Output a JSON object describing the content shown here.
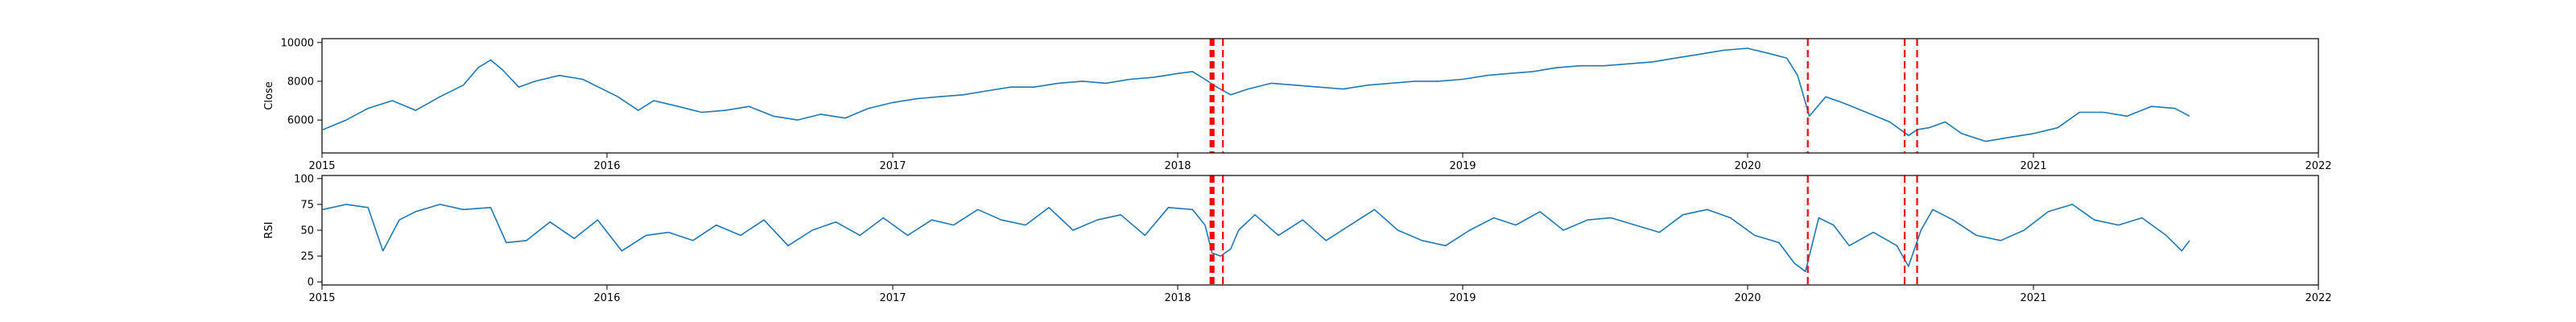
{
  "chart_data": [
    {
      "type": "line",
      "ylabel": "Close",
      "xlim": [
        "2015-01-01",
        "2022-01-01"
      ],
      "ylim": [
        4300,
        10200
      ],
      "x_ticks": [
        "2015-01-01",
        "2016-01-01",
        "2017-01-01",
        "2018-01-01",
        "2019-01-01",
        "2020-01-01",
        "2021-01-01",
        "2022-01-01"
      ],
      "x_tick_labels": [
        "2015",
        "2016",
        "2017",
        "2018",
        "2019",
        "2020",
        "2021",
        "2022"
      ],
      "y_ticks": [
        6000,
        8000,
        10000
      ],
      "y_tick_labels": [
        "6000",
        "8000",
        "10000"
      ],
      "grid": false,
      "line_color": "#1f77b4",
      "series": [
        {
          "x": [
            "2015-01-02",
            "2015-02-01",
            "2015-03-01",
            "2015-04-01",
            "2015-05-01",
            "2015-06-01",
            "2015-07-01",
            "2015-07-20",
            "2015-08-05",
            "2015-08-20",
            "2015-09-10",
            "2015-10-01",
            "2015-11-01",
            "2015-12-01",
            "2016-01-15",
            "2016-02-10",
            "2016-03-01",
            "2016-04-01",
            "2016-05-01",
            "2016-06-01",
            "2016-07-01",
            "2016-08-01",
            "2016-09-01",
            "2016-10-01",
            "2016-11-01",
            "2016-12-01",
            "2017-01-01",
            "2017-02-01",
            "2017-03-01",
            "2017-04-01",
            "2017-05-01",
            "2017-06-01",
            "2017-07-01",
            "2017-08-01",
            "2017-09-01",
            "2017-10-01",
            "2017-11-01",
            "2017-12-01",
            "2018-01-01",
            "2018-01-20",
            "2018-02-05",
            "2018-02-20",
            "2018-03-10",
            "2018-04-01",
            "2018-05-01",
            "2018-06-01",
            "2018-07-01",
            "2018-08-01",
            "2018-09-01",
            "2018-10-01",
            "2018-11-01",
            "2018-12-01",
            "2019-01-01",
            "2019-02-01",
            "2019-03-01",
            "2019-04-01",
            "2019-05-01",
            "2019-06-01",
            "2019-07-01",
            "2019-08-01",
            "2019-09-01",
            "2019-10-01",
            "2019-11-01",
            "2019-12-01",
            "2020-01-01",
            "2020-02-01",
            "2020-02-20",
            "2020-03-05",
            "2020-03-20",
            "2020-04-10",
            "2020-05-01",
            "2020-06-01",
            "2020-07-01",
            "2020-07-25",
            "2020-08-05",
            "2020-08-20",
            "2020-09-10",
            "2020-10-01",
            "2020-11-01",
            "2020-12-01",
            "2021-01-01",
            "2021-02-01",
            "2021-03-01",
            "2021-04-01",
            "2021-05-01",
            "2021-06-01",
            "2021-07-01",
            "2021-07-20"
          ],
          "y": [
            5500,
            6000,
            6600,
            7000,
            6500,
            7200,
            7800,
            8700,
            9100,
            8600,
            7700,
            8000,
            8300,
            8100,
            7200,
            6500,
            7000,
            6700,
            6400,
            6500,
            6700,
            6200,
            6000,
            6300,
            6100,
            6600,
            6900,
            7100,
            7200,
            7300,
            7500,
            7700,
            7700,
            7900,
            8000,
            7900,
            8100,
            8200,
            8400,
            8500,
            8100,
            7700,
            7300,
            7600,
            7900,
            7800,
            7700,
            7600,
            7800,
            7900,
            8000,
            8000,
            8100,
            8300,
            8400,
            8500,
            8700,
            8800,
            8800,
            8900,
            9000,
            9200,
            9400,
            9600,
            9700,
            9400,
            9200,
            8300,
            6200,
            7200,
            6900,
            6400,
            5900,
            5200,
            5500,
            5600,
            5900,
            5300,
            4900,
            5100,
            5300,
            5600,
            6400,
            6400,
            6200,
            6700,
            6600,
            6200
          ]
        }
      ],
      "event_lines": [
        "2018-02-12",
        "2018-02-14",
        "2018-02-16",
        "2018-02-28",
        "2020-03-18",
        "2020-07-20",
        "2020-08-05"
      ],
      "event_line_color": "#ff0000"
    },
    {
      "type": "line",
      "ylabel": "RSI",
      "xlim": [
        "2015-01-01",
        "2022-01-01"
      ],
      "ylim": [
        -3,
        103
      ],
      "x_ticks": [
        "2015-01-01",
        "2016-01-01",
        "2017-01-01",
        "2018-01-01",
        "2019-01-01",
        "2020-01-01",
        "2021-01-01",
        "2022-01-01"
      ],
      "x_tick_labels": [
        "2015",
        "2016",
        "2017",
        "2018",
        "2019",
        "2020",
        "2021",
        "2022"
      ],
      "y_ticks": [
        0,
        25,
        50,
        75,
        100
      ],
      "y_tick_labels": [
        "0",
        "25",
        "50",
        "75",
        "100"
      ],
      "grid": false,
      "line_color": "#1f77b4",
      "series": [
        {
          "x": [
            "2015-01-02",
            "2015-02-01",
            "2015-03-01",
            "2015-03-20",
            "2015-04-10",
            "2015-05-01",
            "2015-06-01",
            "2015-07-01",
            "2015-08-05",
            "2015-08-25",
            "2015-09-20",
            "2015-10-20",
            "2015-11-20",
            "2015-12-20",
            "2016-01-20",
            "2016-02-20",
            "2016-03-20",
            "2016-04-20",
            "2016-05-20",
            "2016-06-20",
            "2016-07-20",
            "2016-08-20",
            "2016-09-20",
            "2016-10-20",
            "2016-11-20",
            "2016-12-20",
            "2017-01-20",
            "2017-02-20",
            "2017-03-20",
            "2017-04-20",
            "2017-05-20",
            "2017-06-20",
            "2017-07-20",
            "2017-08-20",
            "2017-09-20",
            "2017-10-20",
            "2017-11-20",
            "2017-12-20",
            "2018-01-20",
            "2018-02-05",
            "2018-02-14",
            "2018-02-25",
            "2018-03-10",
            "2018-03-20",
            "2018-04-10",
            "2018-05-10",
            "2018-06-10",
            "2018-07-10",
            "2018-08-10",
            "2018-09-10",
            "2018-10-10",
            "2018-11-10",
            "2018-12-10",
            "2019-01-10",
            "2019-02-10",
            "2019-03-10",
            "2019-04-10",
            "2019-05-10",
            "2019-06-10",
            "2019-07-10",
            "2019-08-10",
            "2019-09-10",
            "2019-10-10",
            "2019-11-10",
            "2019-12-10",
            "2020-01-10",
            "2020-02-10",
            "2020-03-01",
            "2020-03-15",
            "2020-04-01",
            "2020-04-20",
            "2020-05-10",
            "2020-06-10",
            "2020-07-10",
            "2020-07-25",
            "2020-08-10",
            "2020-08-25",
            "2020-09-20",
            "2020-10-20",
            "2020-11-20",
            "2020-12-20",
            "2021-01-20",
            "2021-02-20",
            "2021-03-20",
            "2021-04-20",
            "2021-05-20",
            "2021-06-20",
            "2021-07-10",
            "2021-07-20"
          ],
          "y": [
            70,
            75,
            72,
            30,
            60,
            68,
            75,
            70,
            72,
            38,
            40,
            58,
            42,
            60,
            30,
            45,
            48,
            40,
            55,
            45,
            60,
            35,
            50,
            58,
            45,
            62,
            45,
            60,
            55,
            70,
            60,
            55,
            72,
            50,
            60,
            65,
            45,
            72,
            70,
            55,
            28,
            25,
            32,
            50,
            65,
            45,
            60,
            40,
            55,
            70,
            50,
            40,
            35,
            50,
            62,
            55,
            68,
            50,
            60,
            62,
            55,
            48,
            65,
            70,
            62,
            45,
            38,
            18,
            10,
            62,
            55,
            35,
            48,
            35,
            15,
            50,
            70,
            60,
            45,
            40,
            50,
            68,
            75,
            60,
            55,
            62,
            45,
            30,
            40
          ]
        }
      ],
      "event_lines": [
        "2018-02-12",
        "2018-02-14",
        "2018-02-16",
        "2018-02-28",
        "2020-03-18",
        "2020-07-20",
        "2020-08-05"
      ],
      "event_line_color": "#ff0000"
    }
  ]
}
